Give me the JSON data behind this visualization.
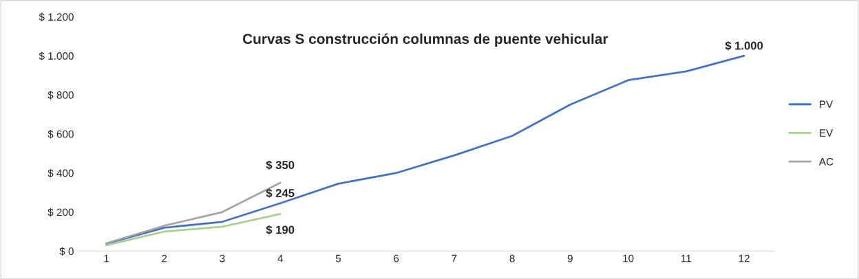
{
  "chart_data": {
    "type": "line",
    "title": "Curvas S construcción columnas de puente vehicular",
    "categories": [
      "1",
      "2",
      "3",
      "4",
      "5",
      "6",
      "7",
      "8",
      "9",
      "10",
      "11",
      "12"
    ],
    "series": [
      {
        "name": "PV",
        "color": "#4472c4",
        "values": [
          38,
          120,
          150,
          245,
          345,
          400,
          490,
          590,
          750,
          875,
          920,
          1000
        ],
        "value_labels": [
          null,
          null,
          null,
          "$ 245",
          null,
          null,
          null,
          null,
          null,
          null,
          null,
          "$ 1.000"
        ]
      },
      {
        "name": "EV",
        "color": "#a9d18e",
        "values": [
          30,
          100,
          125,
          190,
          null,
          null,
          null,
          null,
          null,
          null,
          null,
          null
        ],
        "value_labels": [
          null,
          null,
          null,
          "$ 190",
          null,
          null,
          null,
          null,
          null,
          null,
          null,
          null
        ]
      },
      {
        "name": "AC",
        "color": "#a5a5a5",
        "values": [
          40,
          130,
          200,
          350,
          null,
          null,
          null,
          null,
          null,
          null,
          null,
          null
        ],
        "value_labels": [
          null,
          null,
          null,
          "$ 350",
          null,
          null,
          null,
          null,
          null,
          null,
          null,
          null
        ]
      }
    ],
    "ylim": [
      0,
      1200
    ],
    "yticks": [
      {
        "value": 0,
        "label": "$ 0"
      },
      {
        "value": 200,
        "label": "$ 200"
      },
      {
        "value": 400,
        "label": "$ 400"
      },
      {
        "value": 600,
        "label": "$ 600"
      },
      {
        "value": 800,
        "label": "$ 800"
      },
      {
        "value": 1000,
        "label": "$ 1.000"
      },
      {
        "value": 1200,
        "label": "$ 1.200"
      }
    ],
    "grid": false,
    "legend": "right",
    "marker": "none",
    "line_style": "solid"
  }
}
